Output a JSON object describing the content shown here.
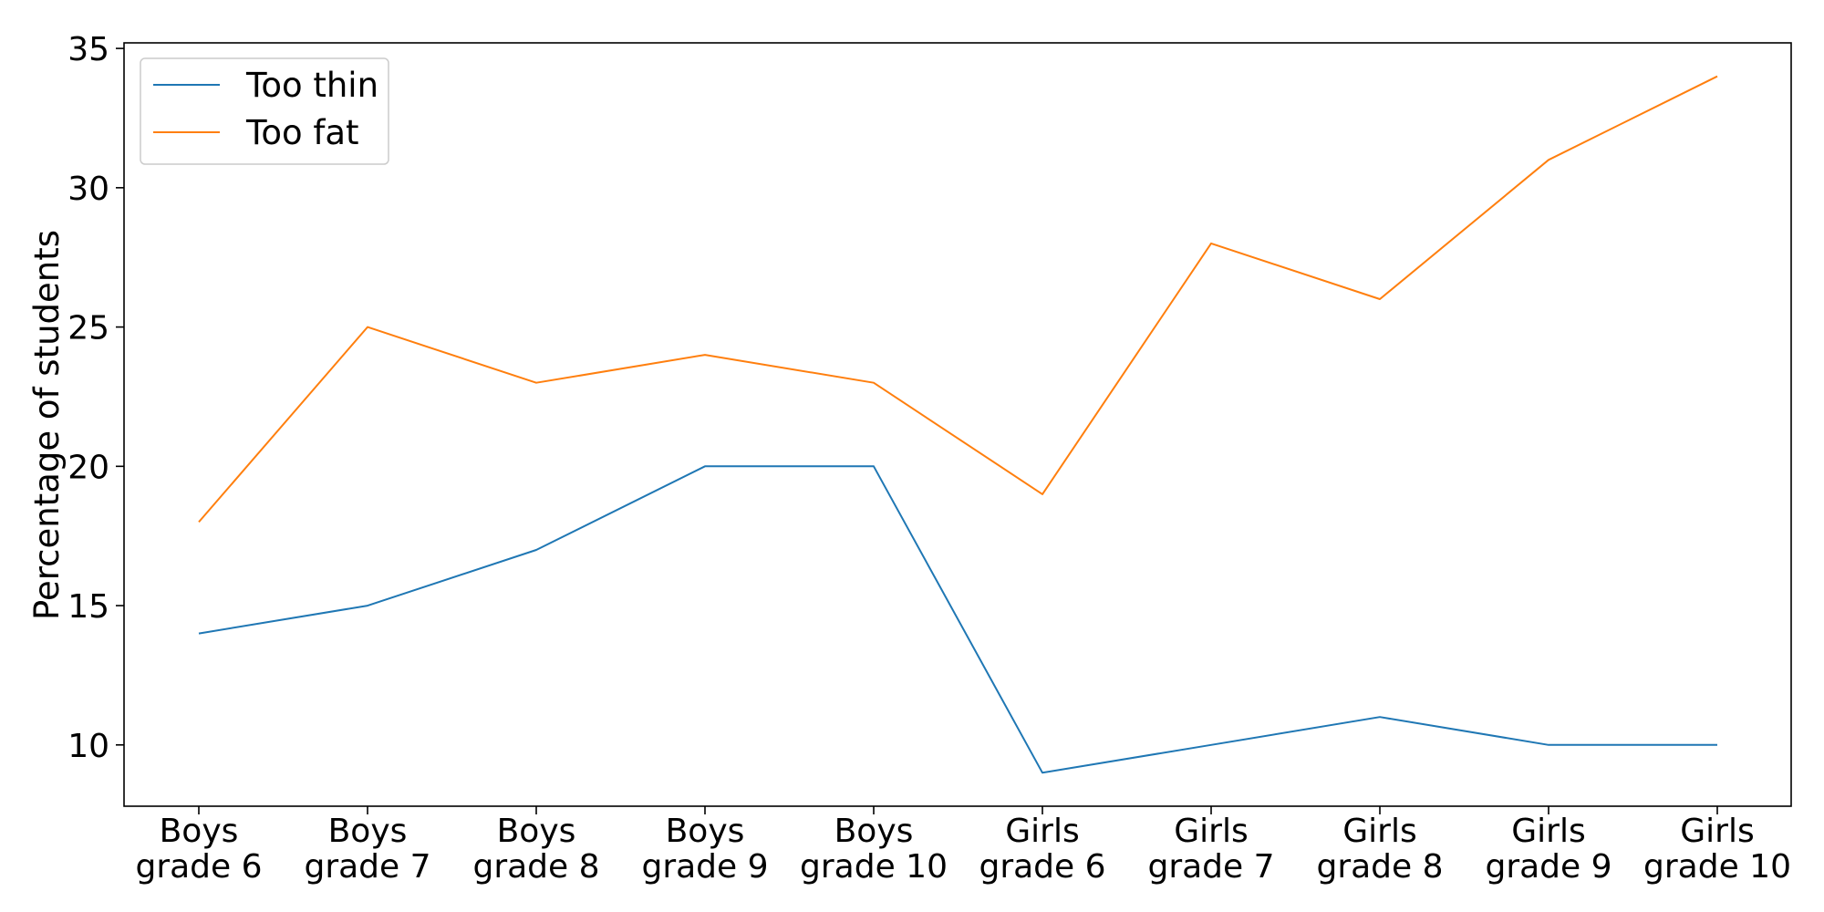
{
  "chart_data": {
    "type": "line",
    "categories": [
      [
        "Boys",
        "grade 6"
      ],
      [
        "Boys",
        "grade 7"
      ],
      [
        "Boys",
        "grade 8"
      ],
      [
        "Boys",
        "grade 9"
      ],
      [
        "Boys",
        "grade 10"
      ],
      [
        "Girls",
        "grade 6"
      ],
      [
        "Girls",
        "grade 7"
      ],
      [
        "Girls",
        "grade 8"
      ],
      [
        "Girls",
        "grade 9"
      ],
      [
        "Girls",
        "grade 10"
      ]
    ],
    "series": [
      {
        "name": "Too thin",
        "color": "#1f77b4",
        "values": [
          14,
          15,
          17,
          20,
          20,
          9,
          10,
          11,
          10,
          10
        ]
      },
      {
        "name": "Too fat",
        "color": "#ff7f0e",
        "values": [
          18,
          25,
          23,
          24,
          23,
          19,
          28,
          26,
          31,
          34
        ]
      }
    ],
    "ylabel": "Percentage of students",
    "xlabel": "",
    "title": "",
    "ylim": [
      7.8,
      35.2
    ],
    "yticks": [
      10,
      15,
      20,
      25,
      30,
      35
    ],
    "grid": false,
    "legend_position": "top-left"
  }
}
